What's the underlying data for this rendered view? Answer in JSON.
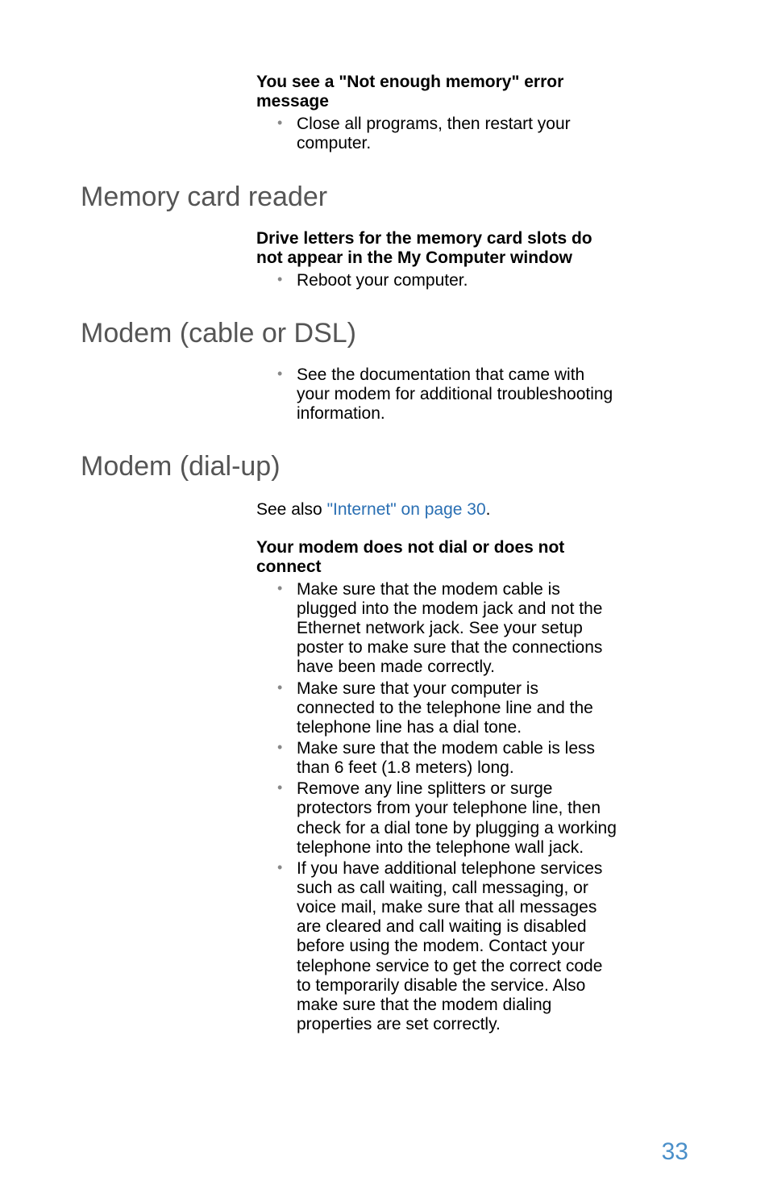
{
  "block1": {
    "title": "You see a \"Not enough memory\" error message",
    "items": [
      "Close all programs, then restart your computer."
    ]
  },
  "section1": {
    "heading": "Memory card reader",
    "issue_title": "Drive letters for the memory card slots do not appear in the My Computer window",
    "items": [
      "Reboot your computer."
    ]
  },
  "section2": {
    "heading": "Modem (cable or DSL)",
    "items": [
      "See the documentation that came with your modem for additional troubleshooting information."
    ]
  },
  "section3": {
    "heading": "Modem (dial-up)",
    "see_also_prefix": "See also ",
    "see_also_link": "\"Internet\" on page 30",
    "see_also_suffix": ".",
    "issue_title": "Your modem does not dial or does not connect",
    "items": [
      "Make sure that the modem cable is plugged into the modem jack and not the Ethernet network jack. See your setup poster to make sure that the connections have been made correctly.",
      "Make sure that your computer is connected to the telephone line and the telephone line has a dial tone.",
      "Make sure that the modem cable is less than 6 feet (1.8 meters) long.",
      "Remove any line splitters or surge protectors from your telephone line, then check for a dial tone by plugging a working telephone into the telephone wall jack.",
      "If you have additional telephone services such as call waiting, call messaging, or voice mail, make sure that all messages are cleared and call waiting is disabled before using the modem. Contact your telephone service to get the correct code to temporarily disable the service. Also make sure that the modem dialing properties are set correctly."
    ]
  },
  "page_number": "33"
}
